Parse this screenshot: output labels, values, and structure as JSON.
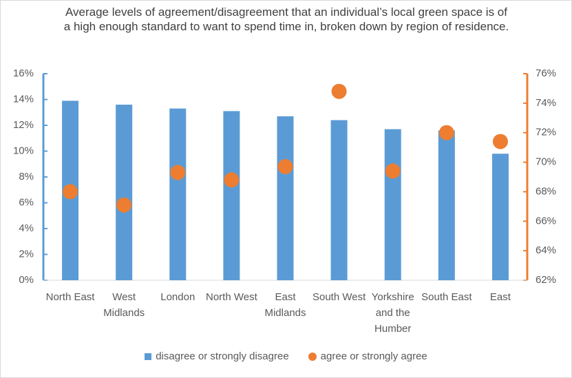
{
  "chart_data": {
    "type": "bar",
    "title": "Average levels of agreement/disagreement that an individual’s local green space is of a high enough standard to want to spend time in, broken down by region of residence.",
    "categories": [
      "North East",
      "West Midlands",
      "London",
      "North West",
      "East Midlands",
      "South West",
      "Yorkshire and the Humber",
      "South East",
      "East"
    ],
    "series": [
      {
        "name": "disagree or strongly disagree",
        "type": "bar",
        "color": "#5b9bd5",
        "values": [
          13.9,
          13.6,
          13.3,
          13.1,
          12.7,
          12.4,
          11.7,
          11.6,
          9.8
        ]
      },
      {
        "name": "agree or strongly agree",
        "type": "scatter",
        "axis": "y2",
        "color": "#ed7d31",
        "values": [
          68.0,
          67.1,
          69.3,
          68.8,
          69.7,
          74.8,
          69.4,
          72.0,
          71.4
        ]
      }
    ],
    "ylim": [
      0,
      16
    ],
    "yticks": [
      {
        "value": 0,
        "label": "0%"
      },
      {
        "value": 2,
        "label": "2%"
      },
      {
        "value": 4,
        "label": "4%"
      },
      {
        "value": 6,
        "label": "6%"
      },
      {
        "value": 8,
        "label": "8%"
      },
      {
        "value": 10,
        "label": "10%"
      },
      {
        "value": 12,
        "label": "12%"
      },
      {
        "value": 14,
        "label": "14%"
      },
      {
        "value": 16,
        "label": "16%"
      }
    ],
    "y2lim": [
      62,
      76
    ],
    "y2ticks": [
      {
        "value": 62,
        "label": "62%"
      },
      {
        "value": 64,
        "label": "64%"
      },
      {
        "value": 66,
        "label": "66%"
      },
      {
        "value": 68,
        "label": "68%"
      },
      {
        "value": 70,
        "label": "70%"
      },
      {
        "value": 72,
        "label": "72%"
      },
      {
        "value": 74,
        "label": "74%"
      },
      {
        "value": 76,
        "label": "76%"
      }
    ],
    "legend": "bottom"
  }
}
